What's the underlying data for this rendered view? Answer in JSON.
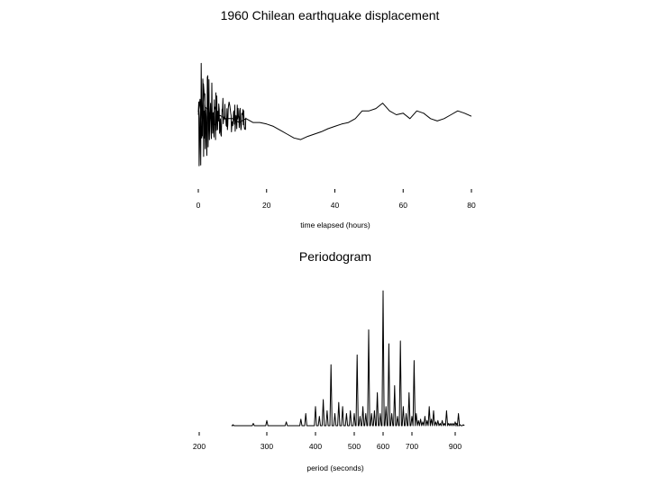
{
  "chart_data": [
    {
      "type": "line",
      "title": "1960 Chilean earthquake displacement",
      "xlabel": "time elapsed (hours)",
      "ylabel": "",
      "xlim": [
        0,
        80
      ],
      "x_ticks": [
        "0",
        "20",
        "40",
        "60",
        "80"
      ],
      "y_axis_shown": false,
      "grid": false,
      "series": [
        {
          "x": [
            0,
            0.5,
            1,
            1.5,
            2,
            3,
            4,
            5,
            6,
            8,
            10,
            12,
            14,
            16,
            18,
            20,
            22,
            24,
            26,
            28,
            30,
            32,
            34,
            36,
            38,
            40,
            42,
            44,
            46,
            48,
            50,
            52,
            54,
            56,
            58,
            60,
            62,
            64,
            66,
            68,
            70,
            72,
            74,
            76,
            78,
            80
          ],
          "y": [
            0,
            0.2,
            -0.3,
            0.4,
            0.1,
            0.05,
            -0.05,
            0.1,
            0,
            -0.05,
            -0.05,
            -0.1,
            -0.05,
            -0.1,
            -0.1,
            -0.12,
            -0.15,
            -0.2,
            -0.25,
            -0.3,
            -0.32,
            -0.28,
            -0.25,
            -0.22,
            -0.18,
            -0.15,
            -0.12,
            -0.1,
            -0.05,
            0.05,
            0.05,
            0.08,
            0.15,
            0.05,
            0.0,
            0.02,
            -0.05,
            0.05,
            0.02,
            -0.05,
            -0.08,
            -0.05,
            0.0,
            0.05,
            0.02,
            -0.02
          ]
        }
      ]
    },
    {
      "type": "line",
      "title": "Periodogram",
      "xlabel": "period (seconds)",
      "ylabel": "",
      "xlim": [
        200,
        1000
      ],
      "x_ticks": [
        "200",
        "300",
        "400",
        "500",
        "600",
        "700",
        "900"
      ],
      "y_axis_shown": false,
      "grid": false,
      "series": [
        {
          "x": [
            250,
            280,
            300,
            340,
            370,
            380,
            400,
            410,
            420,
            430,
            440,
            450,
            460,
            470,
            480,
            490,
            500,
            510,
            520,
            530,
            540,
            550,
            560,
            570,
            580,
            590,
            600,
            610,
            620,
            630,
            640,
            650,
            660,
            670,
            680,
            690,
            700,
            710,
            720,
            730,
            740,
            750,
            760,
            770,
            780,
            790,
            800,
            810,
            820,
            830,
            840,
            850,
            860,
            870,
            880,
            890,
            900,
            910,
            920,
            930,
            950
          ],
          "y": [
            0.02,
            0.03,
            0.05,
            0.04,
            0.06,
            0.1,
            0.15,
            0.08,
            0.2,
            0.12,
            0.45,
            0.1,
            0.18,
            0.15,
            0.1,
            0.12,
            0.1,
            0.52,
            0.08,
            0.15,
            0.1,
            0.7,
            0.1,
            0.12,
            0.25,
            0.1,
            0.98,
            0.15,
            0.6,
            0.1,
            0.3,
            0.08,
            0.62,
            0.15,
            0.1,
            0.25,
            0.08,
            0.48,
            0.1,
            0.05,
            0.06,
            0.04,
            0.08,
            0.05,
            0.15,
            0.06,
            0.12,
            0.04,
            0.05,
            0.03,
            0.05,
            0.03,
            0.12,
            0.03,
            0.03,
            0.03,
            0.04,
            0.03,
            0.1,
            0.02,
            0.02
          ]
        }
      ]
    }
  ]
}
